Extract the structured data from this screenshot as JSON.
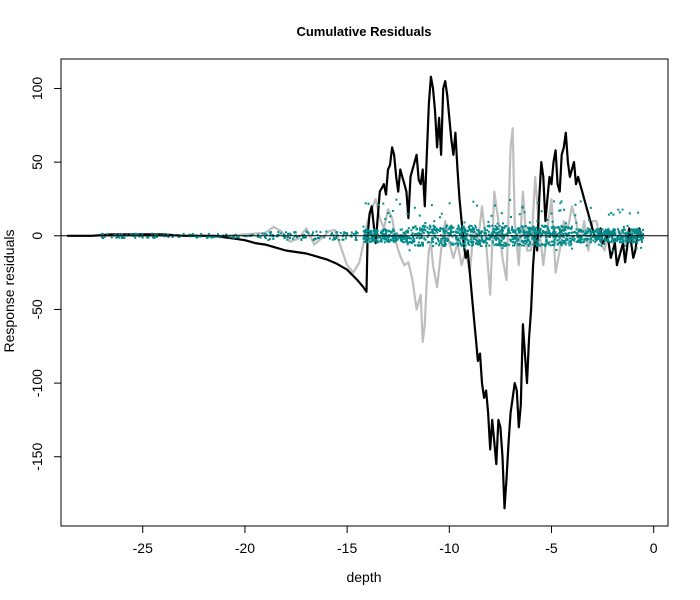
{
  "chart_data": {
    "type": "line",
    "title": "Cumulative Residuals",
    "xlabel": "depth",
    "ylabel": "Response  residuals",
    "xlim": [
      -29,
      0.7
    ],
    "ylim": [
      -197,
      120
    ],
    "x_ticks": [
      -25,
      -20,
      -15,
      -10,
      -5,
      0
    ],
    "x_tick_labels": [
      "-25",
      "-20",
      "-15",
      "-10",
      "-5",
      "0"
    ],
    "y_ticks": [
      -150,
      -100,
      -50,
      0,
      50,
      100
    ],
    "y_tick_labels": [
      "-150",
      "-100",
      "-50",
      "0",
      "50",
      "100"
    ],
    "grid": false,
    "reference_line": {
      "y": 0,
      "color": "#000000"
    },
    "colors": {
      "cumulative": "#000000",
      "simulated": "#bebebe",
      "points": "#008b8b"
    },
    "series": [
      {
        "style": "gray",
        "x": [
          -28.7,
          -26,
          -23,
          -21,
          -19,
          -18.6,
          -18.2,
          -17.8,
          -17.4,
          -17.0,
          -16.6,
          -16.2,
          -15.9,
          -15.6,
          -15.3,
          -15.0,
          -14.7,
          -14.4,
          -14.2,
          -14.0,
          -13.8,
          -13.6,
          -13.4,
          -13.2,
          -13.0,
          -12.8,
          -12.6,
          -12.4,
          -12.2,
          -12.0,
          -11.8,
          -11.6,
          -11.4,
          -11.3,
          -11.2,
          -11.1,
          -11.0,
          -10.9,
          -10.8,
          -10.6,
          -10.4,
          -10.2,
          -10.0,
          -9.8,
          -9.6,
          -9.4,
          -9.2,
          -9.0,
          -8.8,
          -8.6,
          -8.4,
          -8.2,
          -8.0,
          -7.8,
          -7.6,
          -7.4,
          -7.2,
          -7.0,
          -6.9,
          -6.8,
          -6.6,
          -6.4,
          -6.2,
          -6.0,
          -5.8,
          -5.6,
          -5.4,
          -5.2,
          -5.0,
          -4.8,
          -4.6,
          -4.4,
          -4.2,
          -4.0,
          -3.8,
          -3.6,
          -3.4,
          -3.2,
          -3.0,
          -2.8,
          -2.6,
          -2.4,
          -2.2,
          -2.0,
          -1.8,
          -1.6,
          -1.4,
          -1.2,
          -1.0,
          -0.8,
          -0.6
        ],
        "y": [
          0,
          0,
          0,
          0,
          2,
          6,
          3,
          -4,
          -2,
          5,
          -6,
          -1,
          3,
          4,
          -8,
          -20,
          -25,
          -18,
          -5,
          10,
          18,
          25,
          12,
          5,
          18,
          12,
          -5,
          -14,
          -20,
          -18,
          -30,
          -50,
          -40,
          -72,
          -60,
          -30,
          -10,
          -5,
          -20,
          -35,
          -10,
          10,
          -5,
          -15,
          -5,
          -20,
          -10,
          -25,
          5,
          -5,
          20,
          -5,
          -40,
          30,
          10,
          -15,
          -30,
          60,
          73,
          10,
          -20,
          30,
          -10,
          -10,
          40,
          5,
          -20,
          5,
          25,
          -25,
          -10,
          10,
          5,
          20,
          10,
          -5,
          10,
          -10,
          10,
          10,
          -5,
          -10,
          5,
          -5,
          -3,
          3,
          -5,
          5,
          -5,
          5,
          0
        ]
      },
      {
        "style": "black",
        "x": [
          -28.7,
          -27.5,
          -26.5,
          -25,
          -24,
          -23,
          -22,
          -21.5,
          -21,
          -20.5,
          -20,
          -19.5,
          -19,
          -18.5,
          -18,
          -17.5,
          -17.0,
          -16.5,
          -16.0,
          -15.5,
          -15.0,
          -14.5,
          -14.2,
          -14.05,
          -14.0,
          -13.9,
          -13.8,
          -13.6,
          -13.4,
          -13.2,
          -13.1,
          -13.0,
          -12.9,
          -12.8,
          -12.7,
          -12.6,
          -12.5,
          -12.4,
          -12.3,
          -12.2,
          -12.1,
          -12.0,
          -11.9,
          -11.8,
          -11.7,
          -11.6,
          -11.5,
          -11.4,
          -11.3,
          -11.2,
          -11.1,
          -11.0,
          -10.9,
          -10.8,
          -10.7,
          -10.6,
          -10.5,
          -10.4,
          -10.3,
          -10.2,
          -10.1,
          -10.0,
          -9.9,
          -9.8,
          -9.7,
          -9.6,
          -9.5,
          -9.4,
          -9.3,
          -9.2,
          -9.1,
          -9.0,
          -8.9,
          -8.8,
          -8.7,
          -8.6,
          -8.5,
          -8.4,
          -8.3,
          -8.2,
          -8.1,
          -8.0,
          -7.9,
          -7.8,
          -7.7,
          -7.6,
          -7.5,
          -7.4,
          -7.3,
          -7.2,
          -7.1,
          -7.0,
          -6.9,
          -6.8,
          -6.7,
          -6.6,
          -6.5,
          -6.4,
          -6.3,
          -6.2,
          -6.1,
          -6.0,
          -5.9,
          -5.8,
          -5.7,
          -5.6,
          -5.5,
          -5.4,
          -5.3,
          -5.2,
          -5.1,
          -5.0,
          -4.9,
          -4.8,
          -4.7,
          -4.6,
          -4.5,
          -4.4,
          -4.3,
          -4.2,
          -4.1,
          -4.0,
          -3.9,
          -3.8,
          -3.7,
          -3.6,
          -3.5,
          -3.4,
          -3.3,
          -3.2,
          -3.1,
          -3.0,
          -2.9,
          -2.8,
          -2.7,
          -2.6,
          -2.5,
          -2.4,
          -2.3,
          -2.2,
          -2.1,
          -2.0,
          -1.9,
          -1.8,
          -1.7,
          -1.6,
          -1.5,
          -1.4,
          -1.3,
          -1.2,
          -1.1,
          -1.0,
          -0.9,
          -0.8,
          -0.7,
          -0.6
        ],
        "y": [
          0,
          0,
          1,
          1,
          1,
          0,
          0,
          0,
          -1,
          -2,
          -3,
          -5,
          -6,
          -8,
          -10,
          -11,
          -12,
          -14,
          -16,
          -19,
          -23,
          -30,
          -35,
          -38,
          0,
          15,
          20,
          -5,
          30,
          35,
          28,
          45,
          48,
          60,
          55,
          40,
          30,
          45,
          40,
          35,
          30,
          12,
          40,
          45,
          50,
          55,
          38,
          35,
          45,
          20,
          55,
          90,
          108,
          100,
          85,
          60,
          80,
          55,
          100,
          105,
          95,
          80,
          65,
          55,
          70,
          45,
          25,
          10,
          -5,
          -15,
          -10,
          -25,
          -40,
          -55,
          -70,
          -85,
          -80,
          -100,
          -110,
          -105,
          -120,
          -145,
          -125,
          -140,
          -155,
          -125,
          -130,
          -150,
          -185,
          -165,
          -140,
          -120,
          -110,
          -100,
          -105,
          -130,
          -115,
          -60,
          -80,
          -100,
          -70,
          -50,
          -20,
          0,
          -10,
          25,
          50,
          40,
          10,
          25,
          40,
          35,
          50,
          58,
          35,
          30,
          55,
          60,
          70,
          50,
          40,
          45,
          50,
          35,
          40,
          35,
          30,
          25,
          20,
          15,
          10,
          5,
          0,
          -3,
          0,
          5,
          -5,
          -3,
          0,
          -5,
          -15,
          -10,
          -5,
          -20,
          -15,
          -10,
          -5,
          -18,
          -8,
          5,
          -5,
          -15,
          -10,
          0,
          5,
          -2
        ]
      }
    ]
  }
}
